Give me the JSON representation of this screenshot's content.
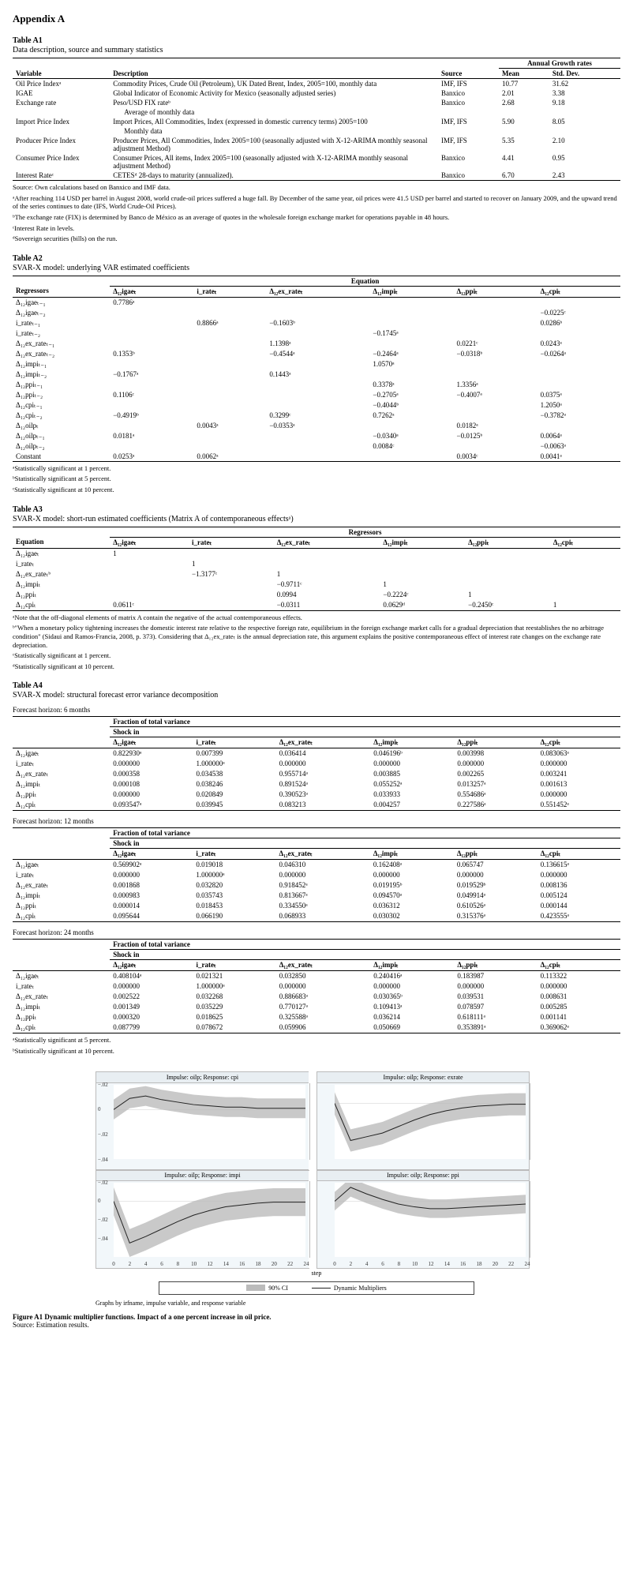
{
  "appendix_title": "Appendix A",
  "tableA1": {
    "caption": "Table A1",
    "subtitle": "Data description, source and summary statistics",
    "head": {
      "variable": "Variable",
      "description": "Description",
      "source": "Source",
      "annual": "Annual Growth rates",
      "mean": "Mean",
      "std": "Std. Dev."
    },
    "rows": [
      {
        "var": "Oil Price Indexᵃ",
        "desc": "Commodity Prices, Crude Oil (Petroleum), UK Dated Brent, Index, 2005=100, monthly data",
        "src": "IMF, IFS",
        "mean": "10.77",
        "std": "31.62"
      },
      {
        "var": "IGAE",
        "desc": "Global Indicator of Economic Activity for Mexico (seasonally adjusted series)",
        "src": "Banxico",
        "mean": "2.01",
        "std": "3.38"
      },
      {
        "var": "Exchange rate",
        "desc": "Peso/USD FIX rateᵇ",
        "src": "Banxico",
        "mean": "2.68",
        "std": "9.18"
      },
      {
        "var": "",
        "desc": "Average of monthly data",
        "src": "",
        "mean": "",
        "std": ""
      },
      {
        "var": "Import Price Index",
        "desc": "Import Prices, All Commodities, Index (expressed in domestic currency terms) 2005=100",
        "src": "IMF, IFS",
        "mean": "5.90",
        "std": "8.05"
      },
      {
        "var": "",
        "desc": "Monthly data",
        "src": "",
        "mean": "",
        "std": ""
      },
      {
        "var": "Producer Price Index",
        "desc": "Producer Prices, All Commodities, Index 2005=100 (seasonally adjusted with X-12-ARIMA monthly seasonal adjustment Method)",
        "src": "IMF, IFS",
        "mean": "5.35",
        "std": "2.10"
      },
      {
        "var": "Consumer Price Index",
        "desc": "Consumer Prices, All items, Index 2005=100 (seasonally adjusted with X-12-ARIMA monthly seasonal adjustment Method)",
        "src": "Banxico",
        "mean": "4.41",
        "std": "0.95"
      },
      {
        "var": "Interest Rateᶜ",
        "desc": "CETESᵈ 28-days to maturity (annualized).",
        "src": "Banxico",
        "mean": "6.70",
        "std": "2.43"
      }
    ],
    "notes": [
      "Source: Own calculations based on Banxico and IMF data.",
      "ᵃAfter reaching 114 USD per barrel in August 2008, world crude-oil prices suffered a huge fall. By December of the same year, oil prices were 41.5 USD per barrel and started to recover on January 2009, and the upward trend of the series continues to date (IFS, World Crude-Oil Prices).",
      "ᵇThe exchange rate (FIX) is determined by Banco de México as an average of quotes in the wholesale foreign exchange market for operations payable in 48 hours.",
      "ᶜInterest Rate in levels.",
      "ᵈSovereign securities (bills) on the run."
    ]
  },
  "tableA2": {
    "caption": "Table A2",
    "subtitle": "SVAR-X model: underlying VAR estimated coefficients",
    "head": {
      "regressor": "Regressors",
      "equation": "Equation",
      "cols": [
        "Δ₁₂igaeₜ",
        "i_rateₜ",
        "Δ₁₂ex_rateₜ",
        "Δ₁₂impiₜ",
        "Δ₁₂ppiₜ",
        "Δ₁₂cpiₜ"
      ]
    },
    "rows": [
      {
        "r": "Δ₁₂igaeₜ₋₁",
        "v": [
          "0.7786ᵃ",
          "",
          "",
          "",
          "",
          ""
        ]
      },
      {
        "r": "Δ₁₂igaeₜ₋₂",
        "v": [
          "",
          "",
          "",
          "",
          "",
          "−0.0225ᶜ"
        ]
      },
      {
        "r": "i_rateₜ₋₁",
        "v": [
          "",
          "0.8866ᵃ",
          "−0.1603ᵇ",
          "",
          "",
          "0.0286ᵇ"
        ]
      },
      {
        "r": "i_rateₜ₋₂",
        "v": [
          "",
          "",
          "",
          "−0.1745ᵃ",
          "",
          ""
        ]
      },
      {
        "r": "Δ₁₂ex_rateₜ₋₁",
        "v": [
          "",
          "",
          "1.1398ᵃ",
          "",
          "0.0221ᶜ",
          "0.0243ᵃ"
        ]
      },
      {
        "r": "Δ₁₂ex_rateₜ₋₂",
        "v": [
          "0.1353ᵇ",
          "",
          "−0.4544ᵃ",
          "−0.2464ᵃ",
          "−0.0318ᵇ",
          "−0.0264ᵃ"
        ]
      },
      {
        "r": "Δ₁₂impiₜ₋₁",
        "v": [
          "",
          "",
          "",
          "1.0570ᵃ",
          "",
          ""
        ]
      },
      {
        "r": "Δ₁₂impiₜ₋₂",
        "v": [
          "−0.1767ᵃ",
          "",
          "0.1443ᵃ",
          "",
          "",
          ""
        ]
      },
      {
        "r": "Δ₁₂ppiₜ₋₁",
        "v": [
          "",
          "",
          "",
          "0.3378ᵃ",
          "1.3356ᵃ",
          ""
        ]
      },
      {
        "r": "Δ₁₂ppiₜ₋₂",
        "v": [
          "0.1106ᶜ",
          "",
          "",
          "−0.2705ᵃ",
          "−0.4007ᵃ",
          "0.0375ᵃ"
        ]
      },
      {
        "r": "Δ₁₂cpiₜ₋₁",
        "v": [
          "",
          "",
          "",
          "−0.4044ᵇ",
          "",
          "1.2050ᵃ"
        ]
      },
      {
        "r": "Δ₁₂cpiₜ₋₂",
        "v": [
          "−0.4919ᵇ",
          "",
          "0.3299ᶜ",
          "0.7262ᵃ",
          "",
          "−0.3782ᵃ"
        ]
      },
      {
        "r": "Δ₁₂oilpₜ",
        "v": [
          "",
          "0.0043ᵃ",
          "−0.0353ᵃ",
          "",
          "0.0182ᵃ",
          ""
        ]
      },
      {
        "r": "Δ₁₂oilpₜ₋₁",
        "v": [
          "0.0181ᵃ",
          "",
          "",
          "−0.0340ᵃ",
          "−0.0125ᵇ",
          "0.0064ᵃ"
        ]
      },
      {
        "r": "Δ₁₂oilpₜ₋₂",
        "v": [
          "",
          "",
          "",
          "0.0084ᶜ",
          "",
          "−0.0063ᵃ"
        ]
      },
      {
        "r": "Constant",
        "v": [
          "0.0253ᵃ",
          "0.0062ᵃ",
          "",
          "",
          "0.0034ᶜ",
          "0.0041ᵃ"
        ]
      }
    ],
    "notes": [
      "ᵃStatistically significant at 1 percent.",
      "ᵇStatistically significant at 5 percent.",
      "ᶜStatistically significant at 10 percent."
    ]
  },
  "tableA3": {
    "caption": "Table A3",
    "subtitle": "SVAR-X model: short-run estimated coefficients (Matrix A of contemporaneous effectsᵃ)",
    "head": {
      "equation": "Equation",
      "regressors": "Regressors",
      "cols": [
        "Δ₁₂igaeₜ",
        "i_rateₜ",
        "Δ₁₂ex_rateₜ",
        "Δ₁₂impiₜ",
        "Δ₁₂ppiₜ",
        "Δ₁₂cpiₜ"
      ]
    },
    "rows": [
      {
        "r": "Δ₁₂igaeₜ",
        "v": [
          "1",
          "",
          "",
          "",
          "",
          ""
        ]
      },
      {
        "r": "i_rateₜ",
        "v": [
          "",
          "1",
          "",
          "",
          "",
          ""
        ]
      },
      {
        "r": "Δ₁₂ex_rateₜᵇ",
        "v": [
          "",
          "−1.3177ᶜ",
          "1",
          "",
          "",
          ""
        ]
      },
      {
        "r": "Δ₁₂impiₜ",
        "v": [
          "",
          "",
          "−0.9711ᶜ",
          "1",
          "",
          ""
        ]
      },
      {
        "r": "Δ₁₂ppiₜ",
        "v": [
          "",
          "",
          "0.0994",
          "−0.2224ᶜ",
          "1",
          ""
        ]
      },
      {
        "r": "Δ₁₂cpiₜ",
        "v": [
          "0.0611ᶜ",
          "",
          "−0.0311",
          "0.0629ᵈ",
          "−0.2450ᶜ",
          "1"
        ]
      }
    ],
    "notes": [
      "ᵃNote that the off-diagonal elements of matrix A contain the negative of the actual contemporaneous effects.",
      "ᵇ\"When a monetary policy tightening increases the domestic interest rate relative to the respective foreign rate, equilibrium in the foreign exchange market calls for a gradual depreciation that reestablishes the no arbitrage condition\" (Sidaui and Ramos-Francia, 2008, p. 373). Considering that Δ₁₂ex_rateₜ is the annual depreciation rate, this argument explains the positive contemporaneous effect of interest rate changes on the exchange rate depreciation.",
      "ᶜStatistically significant at 1 percent.",
      "ᵈStatistically significant at 10 percent."
    ]
  },
  "tableA4": {
    "caption": "Table A4",
    "subtitle": "SVAR-X model: structural forecast error variance decomposition",
    "forecast_label": "Forecast horizon:",
    "horizons": [
      {
        "title": "6 months",
        "rows": [
          {
            "r": "Δ₁₂igaeₜ",
            "v": [
              "0.822930ᵃ",
              "0.007399",
              "0.036414",
              "0.046196ᵇ",
              "0.003998",
              "0.083063ᵃ"
            ]
          },
          {
            "r": "i_rateₜ",
            "v": [
              "0.000000",
              "1.000000ᵃ",
              "0.000000",
              "0.000000",
              "0.000000",
              "0.000000"
            ]
          },
          {
            "r": "Δ₁₂ex_rateₜ",
            "v": [
              "0.000358",
              "0.034538",
              "0.955714ᵃ",
              "0.003885",
              "0.002265",
              "0.003241"
            ]
          },
          {
            "r": "Δ₁₂impiₜ",
            "v": [
              "0.000108",
              "0.038246",
              "0.891524ᵃ",
              "0.055252ᵃ",
              "0.013257ᵃ",
              "0.001613"
            ]
          },
          {
            "r": "Δ₁₂ppiₜ",
            "v": [
              "0.000000",
              "0.020849",
              "0.390523ᵃ",
              "0.033933",
              "0.554686ᵃ",
              "0.000000"
            ]
          },
          {
            "r": "Δ₁₂cpiₜ",
            "v": [
              "0.093547ᵃ",
              "0.039945",
              "0.083213",
              "0.004257",
              "0.227586ᵃ",
              "0.551452ᵃ"
            ]
          }
        ]
      },
      {
        "title": "12 months",
        "rows": [
          {
            "r": "Δ₁₂igaeₜ",
            "v": [
              "0.569902ᵃ",
              "0.019018",
              "0.046310",
              "0.162408ᵃ",
              "0.065747",
              "0.136615ᵃ"
            ]
          },
          {
            "r": "i_rateₜ",
            "v": [
              "0.000000",
              "1.000000ᵃ",
              "0.000000",
              "0.000000",
              "0.000000",
              "0.000000"
            ]
          },
          {
            "r": "Δ₁₂ex_rateₜ",
            "v": [
              "0.001868",
              "0.032820",
              "0.918452ᵃ",
              "0.019195ᵇ",
              "0.019529ᵇ",
              "0.008136"
            ]
          },
          {
            "r": "Δ₁₂impiₜ",
            "v": [
              "0.000983",
              "0.035743",
              "0.813667ᵃ",
              "0.094570ᵃ",
              "0.049914ᵃ",
              "0.005124"
            ]
          },
          {
            "r": "Δ₁₂ppiₜ",
            "v": [
              "0.000014",
              "0.018453",
              "0.334550ᵃ",
              "0.036312",
              "0.610526ᵃ",
              "0.000144"
            ]
          },
          {
            "r": "Δ₁₂cpiₜ",
            "v": [
              "0.095644",
              "0.066190",
              "0.068933",
              "0.030302",
              "0.315376ᵃ",
              "0.423555ᵃ"
            ]
          }
        ]
      },
      {
        "title": "24 months",
        "rows": [
          {
            "r": "Δ₁₂igaeₜ",
            "v": [
              "0.408104ᵃ",
              "0.021321",
              "0.032850",
              "0.240416ᵃ",
              "0.183987",
              "0.113322"
            ]
          },
          {
            "r": "i_rateₜ",
            "v": [
              "0.000000",
              "1.000000ᵃ",
              "0.000000",
              "0.000000",
              "0.000000",
              "0.000000"
            ]
          },
          {
            "r": "Δ₁₂ex_rateₜ",
            "v": [
              "0.002522",
              "0.032268",
              "0.886683ᵃ",
              "0.030365ᵇ",
              "0.039531",
              "0.008631"
            ]
          },
          {
            "r": "Δ₁₂impiₜ",
            "v": [
              "0.001349",
              "0.035229",
              "0.770127ᵃ",
              "0.109413ᵃ",
              "0.078597",
              "0.005285"
            ]
          },
          {
            "r": "Δ₁₂ppiₜ",
            "v": [
              "0.000320",
              "0.018625",
              "0.325588ᵃ",
              "0.036214",
              "0.618111ᵃ",
              "0.001141"
            ]
          },
          {
            "r": "Δ₁₂cpiₜ",
            "v": [
              "0.087799",
              "0.078672",
              "0.059906",
              "0.050669",
              "0.353891ᵃ",
              "0.369062ᵃ"
            ]
          }
        ]
      }
    ],
    "head": {
      "fraction": "Fraction of total variance",
      "shock": "Shock in",
      "cols": [
        "Δ₁₂igaeₜ",
        "i_rateₜ",
        "Δ₁₂ex_rateₜ",
        "Δ₁₂impiₜ",
        "Δ₁₂ppiₜ",
        "Δ₁₂cpiₜ"
      ]
    },
    "notes": [
      "ᵃStatistically significant at 5 percent.",
      "ᵇStatistically significant at 10 percent."
    ]
  },
  "figureA1": {
    "panels": [
      {
        "title": "Impulse: oilp; Response: cpi",
        "ylim": [
          -0.04,
          0.02
        ],
        "yleft": [
          "−.02",
          "0",
          "−.02",
          "−.04"
        ],
        "line": [
          -0.0,
          0.009,
          0.011,
          0.008,
          0.006,
          0.004,
          0.003,
          0.002,
          0.002,
          0.001,
          0.001,
          0.001,
          0.001
        ],
        "ci_hw": 0.008
      },
      {
        "title": "Impulse: oilp; Response: exrate",
        "ylim": [
          -0.06,
          0.02
        ],
        "yleft": [],
        "line": [
          -0.0,
          -0.04,
          -0.036,
          -0.032,
          -0.025,
          -0.018,
          -0.012,
          -0.008,
          -0.005,
          -0.003,
          -0.002,
          -0.001,
          -0.001
        ],
        "ci_hw": 0.012
      },
      {
        "title": "Impulse: oilp; Response: impi",
        "ylim": [
          -0.06,
          0.02
        ],
        "yleft": [
          "−.02",
          "0",
          "−.02",
          "−.04"
        ],
        "line": [
          -0.0,
          -0.045,
          -0.038,
          -0.03,
          -0.022,
          -0.015,
          -0.01,
          -0.006,
          -0.004,
          -0.002,
          -0.001,
          -0.001,
          -0.001
        ],
        "ci_hw": 0.015
      },
      {
        "title": "Impulse: oilp; Response: ppi",
        "ylim": [
          -0.06,
          0.02
        ],
        "yleft": [],
        "line": [
          -0.0,
          0.015,
          0.008,
          0.002,
          -0.003,
          -0.006,
          -0.008,
          -0.008,
          -0.007,
          -0.006,
          -0.005,
          -0.004,
          -0.003
        ],
        "ci_hw": 0.01
      }
    ],
    "xticks": [
      0,
      2,
      4,
      6,
      8,
      10,
      12,
      14,
      16,
      18,
      20,
      22,
      24
    ],
    "step_label": "step",
    "legend_ci": "90% CI",
    "legend_dm": "Dynamic Multipliers",
    "footer": "Graphs by irfname, impulse variable, and response variable",
    "caption": "Figure A1    Dynamic multiplier functions. Impact of a one percent increase in oil price.",
    "source": "Source: Estimation results.",
    "ci_color": "#bbbbbb",
    "line_color": "#222222",
    "bg": "#f2f7fa"
  }
}
